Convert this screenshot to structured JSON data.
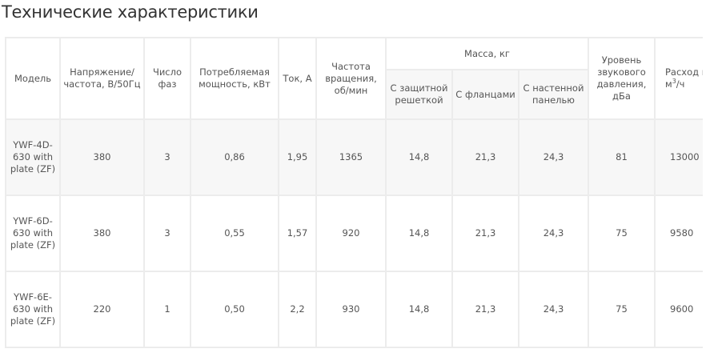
{
  "title": "Технические характеристики",
  "headers": {
    "model": "Модель",
    "voltage": "Напряжение/ частота, В/50Гц",
    "phases": "Число фаз",
    "power": "Потребляемая мощность, кВт",
    "current": "Ток, А",
    "speed": "Частота вращения, об/мин",
    "mass": "Масса, кг",
    "mass_grid": "С защитной решеткой",
    "mass_flange": "С фланцами",
    "mass_panel": "С настенной панелью",
    "noise": "Уровень звукового давления, дБа",
    "airflow": "Расход воздуха, м",
    "airflow_sup": "3",
    "airflow_tail": "/ч"
  },
  "rows": [
    [
      "YWF-4D-630 with plate (ZF)",
      "380",
      "3",
      "0,86",
      "1,95",
      "1365",
      "14,8",
      "21,3",
      "24,3",
      "81",
      "13000"
    ],
    [
      "YWF-6D-630 with plate (ZF)",
      "380",
      "3",
      "0,55",
      "1,57",
      "920",
      "14,8",
      "21,3",
      "24,3",
      "75",
      "9580"
    ],
    [
      "YWF-6E-630 with plate (ZF)",
      "220",
      "1",
      "0,50",
      "2,2",
      "930",
      "14,8",
      "21,3",
      "24,3",
      "75",
      "9600"
    ]
  ]
}
